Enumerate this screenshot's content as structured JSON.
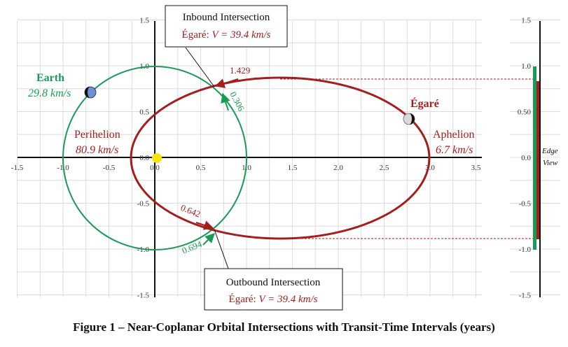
{
  "figure": {
    "caption": "Figure 1 – Near-Coplanar Orbital Intersections with Transit-Time Intervals (years)",
    "x_ticks": [
      "-1.5",
      "-1.0",
      "-0.5",
      "0.0",
      "0.5",
      "1.0",
      "1.5",
      "2.0",
      "2.5",
      "3.0",
      "3.5"
    ],
    "y_ticks": [
      "1.5",
      "1.0",
      "0.5",
      "0.0",
      "-0.5",
      "-1.0",
      "-1.5"
    ],
    "edge_y_ticks": [
      "1.5",
      "1.0",
      "0.50",
      "0.0",
      "-0.5",
      "-1.0",
      "-1.5"
    ],
    "earth": {
      "name": "Earth",
      "speed": "29.8 km/s"
    },
    "egare": {
      "name": "Égaré"
    },
    "perihelion": {
      "name": "Perihelion",
      "speed": "80.9 km/s"
    },
    "aphelion": {
      "name": "Aphelion",
      "speed": "6.7 km/s"
    },
    "inbound": {
      "title": "Inbound Intersection",
      "prefix": "Égaré:  ",
      "eq": "V = 39.4 km/s"
    },
    "outbound": {
      "title": "Outbound Intersection",
      "prefix": "Égaré:  ",
      "eq": "V = 39.4 km/s"
    },
    "intervals": {
      "top": "1.429",
      "inbound_earth": "0.306",
      "outbound_egare": "0.642",
      "outbound_earth": "0.694"
    },
    "edge_view": {
      "line1": "Edge",
      "line2": "View"
    },
    "colors": {
      "earth_orbit": "#1a9b55",
      "egare_orbit": "#a51d1d",
      "sun": "#f5e600",
      "grid": "#dcdcdc"
    }
  },
  "chart_data": {
    "type": "scatter",
    "xlim": [
      -1.5,
      3.5
    ],
    "ylim": [
      -1.5,
      1.5
    ],
    "grid": true,
    "series": [
      {
        "name": "Earth",
        "x": [
          -0.72
        ],
        "y": [
          0.72
        ]
      },
      {
        "name": "Égaré",
        "x": [
          2.8
        ],
        "y": [
          0.42
        ]
      }
    ]
  }
}
